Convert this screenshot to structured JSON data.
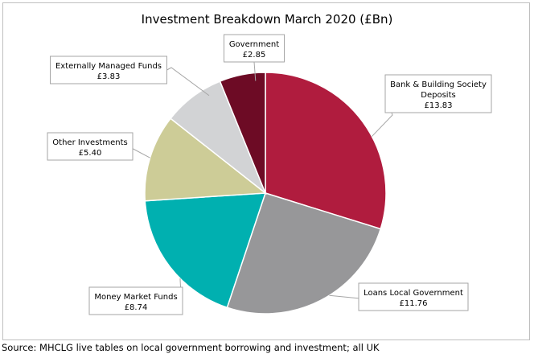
{
  "chart_data": {
    "type": "pie",
    "title": "Investment Breakdown March 2020 (£Bn)",
    "slices": [
      {
        "name": "Bank & Building Society Deposits",
        "label_lines": [
          "Bank & Building Society",
          "Deposits"
        ],
        "value": 13.83,
        "value_label": "£13.83",
        "color": "#b01c3e"
      },
      {
        "name": "Loans Local Government",
        "label_lines": [
          "Loans Local Government"
        ],
        "value": 11.76,
        "value_label": "£11.76",
        "color": "#979799"
      },
      {
        "name": "Money Market Funds",
        "label_lines": [
          "Money Market Funds"
        ],
        "value": 8.74,
        "value_label": "£8.74",
        "color": "#00b0b0"
      },
      {
        "name": "Other Investments",
        "label_lines": [
          "Other Investments"
        ],
        "value": 5.4,
        "value_label": "£5.40",
        "color": "#cdcc97"
      },
      {
        "name": "Externally Managed Funds",
        "label_lines": [
          "Externally Managed Funds"
        ],
        "value": 3.83,
        "value_label": "£3.83",
        "color": "#d2d3d5"
      },
      {
        "name": "Government",
        "label_lines": [
          "Government"
        ],
        "value": 2.85,
        "value_label": "£2.85",
        "color": "#6d0b25"
      }
    ],
    "start_angle": "12 o'clock",
    "direction": "clockwise",
    "legend": "none",
    "label_style": "callout boxes with leader lines"
  },
  "source": "Source: MHCLG live tables on local government borrowing and investment; all UK"
}
